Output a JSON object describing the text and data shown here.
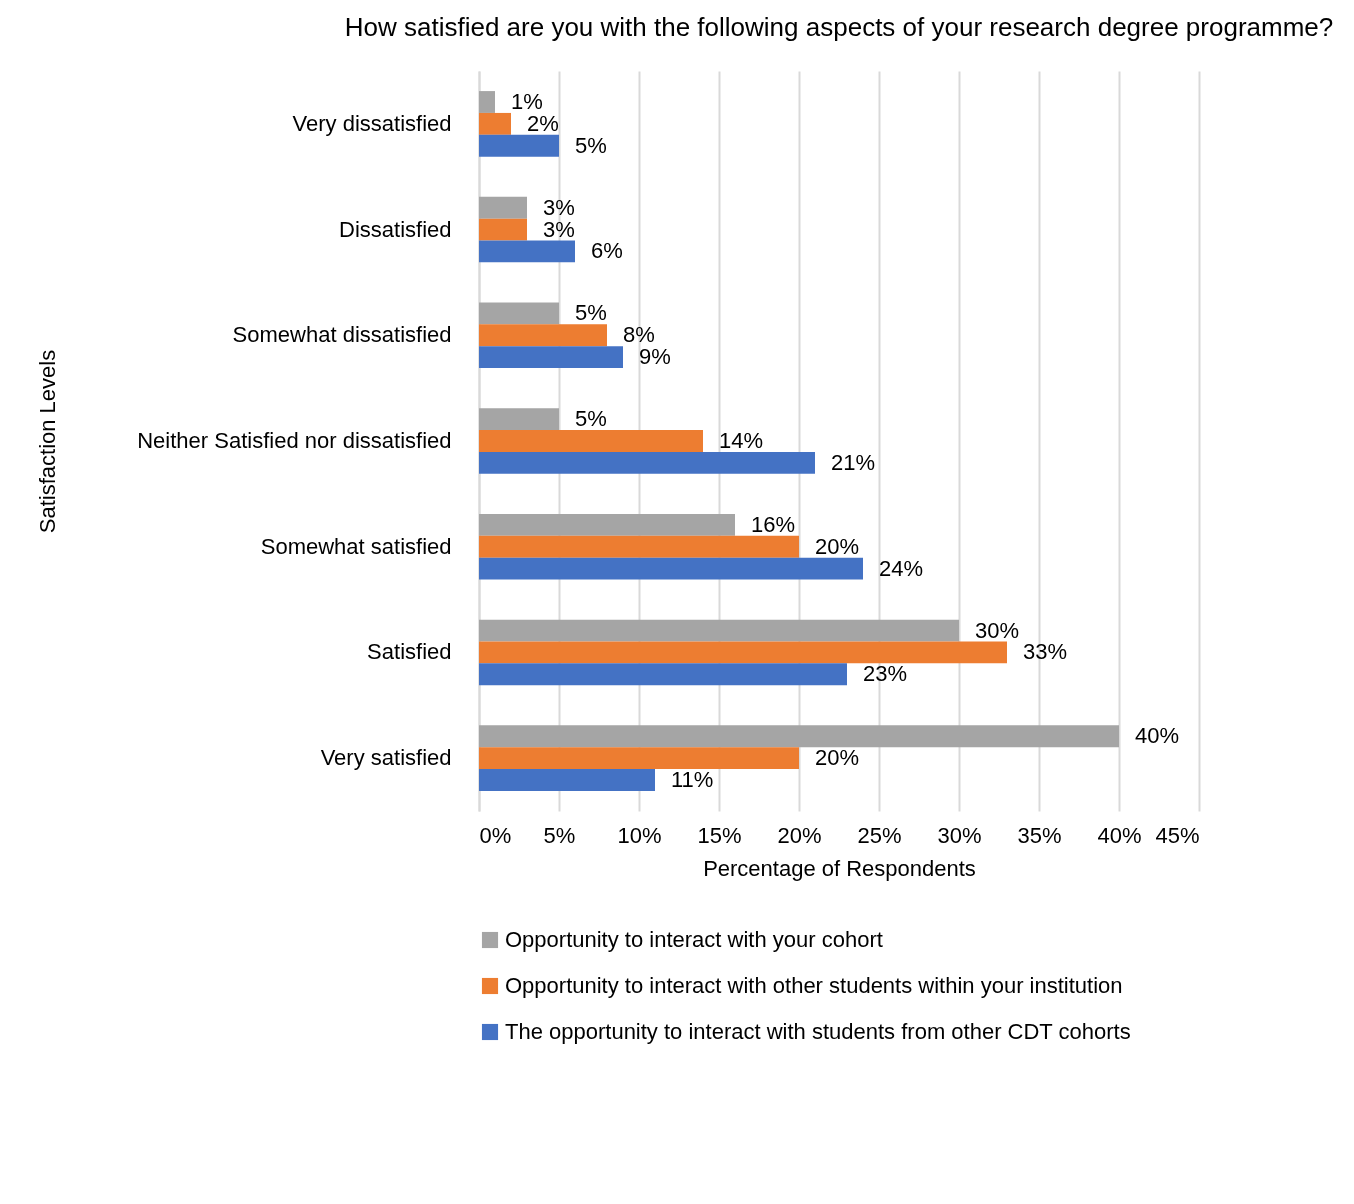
{
  "chart_data": {
    "type": "bar",
    "orientation": "horizontal",
    "title": "How satisfied are you with the following aspects of your research degree programme?",
    "xlabel": "Percentage of Respondents",
    "ylabel": "Satisfaction Levels",
    "categories": [
      "Very dissatisfied",
      "Dissatisfied",
      "Somewhat dissatisfied",
      "Neither Satisfied nor dissatisfied",
      "Somewhat satisfied",
      "Satisfied",
      "Very satisfied"
    ],
    "series": [
      {
        "name": "Opportunity to interact with your cohort",
        "color": "#a5a5a5",
        "values": [
          1,
          3,
          5,
          5,
          16,
          30,
          40
        ],
        "value_labels": [
          "1%",
          "3%",
          "5%",
          "5%",
          "16%",
          "30%",
          "40%"
        ]
      },
      {
        "name": "Opportunity to interact with other students within your institution",
        "color": "#ed7d31",
        "values": [
          2,
          3,
          8,
          14,
          20,
          33,
          20
        ],
        "value_labels": [
          "2%",
          "3%",
          "8%",
          "14%",
          "20%",
          "33%",
          "20%"
        ]
      },
      {
        "name": "The opportunity to interact with students from other CDT cohorts",
        "color": "#4472c4",
        "values": [
          5,
          6,
          9,
          21,
          24,
          23,
          11
        ],
        "value_labels": [
          "5%",
          "6%",
          "9%",
          "21%",
          "24%",
          "23%",
          "11%"
        ]
      }
    ],
    "xlim": [
      0,
      45
    ],
    "xticks": [
      {
        "value": 0,
        "label": "0%"
      },
      {
        "value": 5,
        "label": "5%"
      },
      {
        "value": 10,
        "label": "10%"
      },
      {
        "value": 15,
        "label": "15%"
      },
      {
        "value": 20,
        "label": "20%"
      },
      {
        "value": 25,
        "label": "25%"
      },
      {
        "value": 30,
        "label": "30%"
      },
      {
        "value": 35,
        "label": "35%"
      },
      {
        "value": 40,
        "label": "40%"
      },
      {
        "value": 45,
        "label": "45%"
      }
    ],
    "grid": "x",
    "legend": "bottom"
  }
}
